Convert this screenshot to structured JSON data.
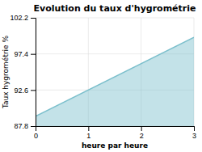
{
  "chart_data": {
    "type": "area",
    "title": "Evolution du taux d'hygrométrie",
    "xlabel": "heure par heure",
    "ylabel": "Taux hygrométrie %",
    "x": [
      0,
      3
    ],
    "values": [
      89.1,
      99.6
    ],
    "baseline": 87.8,
    "color": "#7bbfcc",
    "xlim": [
      0,
      3
    ],
    "ylim": [
      87.8,
      102.2
    ],
    "xticks": [
      0,
      1,
      2,
      3
    ],
    "yticks": [
      87.8,
      92.6,
      97.4,
      102.2
    ],
    "grid": true
  }
}
